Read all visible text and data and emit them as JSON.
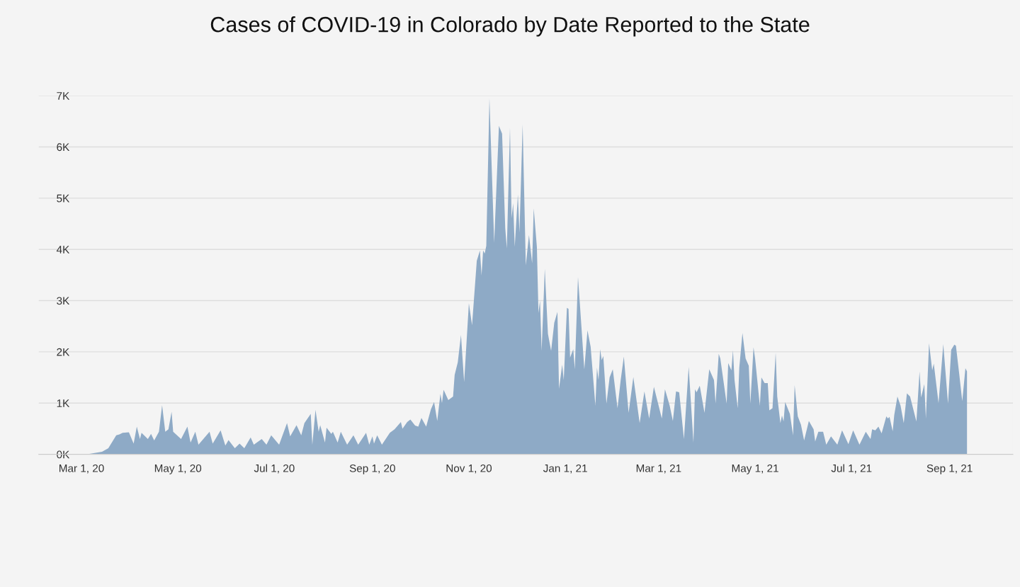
{
  "chart_data": {
    "type": "area",
    "title": "Cases of COVID-19 in Colorado by Date Reported to the State",
    "x": [
      "2020-03-04",
      "2020-03-14",
      "2020-03-18",
      "2020-03-23",
      "2020-03-25",
      "2020-03-27",
      "2020-03-31",
      "2020-04-03",
      "2020-04-05",
      "2020-04-07",
      "2020-04-08",
      "2020-04-12",
      "2020-04-14",
      "2020-04-16",
      "2020-04-19",
      "2020-04-21",
      "2020-04-23",
      "2020-04-25",
      "2020-04-27",
      "2020-04-28",
      "2020-05-03",
      "2020-05-07",
      "2020-05-09",
      "2020-05-12",
      "2020-05-14",
      "2020-05-21",
      "2020-05-23",
      "2020-05-28",
      "2020-05-31",
      "2020-06-02",
      "2020-06-06",
      "2020-06-09",
      "2020-06-12",
      "2020-06-16",
      "2020-06-18",
      "2020-06-23",
      "2020-06-26",
      "2020-06-29",
      "2020-07-04",
      "2020-07-09",
      "2020-07-11",
      "2020-07-15",
      "2020-07-18",
      "2020-07-20",
      "2020-07-24",
      "2020-07-25",
      "2020-07-27",
      "2020-07-29",
      "2020-07-30",
      "2020-08-02",
      "2020-08-03",
      "2020-08-06",
      "2020-08-07",
      "2020-08-10",
      "2020-08-12",
      "2020-08-16",
      "2020-08-20",
      "2020-08-23",
      "2020-08-28",
      "2020-08-30",
      "2020-09-01",
      "2020-09-02",
      "2020-09-04",
      "2020-09-07",
      "2020-09-12",
      "2020-09-15",
      "2020-09-19",
      "2020-09-20",
      "2020-09-23",
      "2020-09-25",
      "2020-09-28",
      "2020-09-30",
      "2020-10-02",
      "2020-10-05",
      "2020-10-08",
      "2020-10-10",
      "2020-10-12",
      "2020-10-14",
      "2020-10-15",
      "2020-10-16",
      "2020-10-19",
      "2020-10-22",
      "2020-10-23",
      "2020-10-25",
      "2020-10-27",
      "2020-10-29",
      "2020-11-01",
      "2020-11-03",
      "2020-11-06",
      "2020-11-08",
      "2020-11-09",
      "2020-11-10",
      "2020-11-11",
      "2020-11-12",
      "2020-11-14",
      "2020-11-17",
      "2020-11-20",
      "2020-11-22",
      "2020-11-24",
      "2020-11-25",
      "2020-11-27",
      "2020-11-28",
      "2020-11-29",
      "2020-11-30",
      "2020-12-02",
      "2020-12-03",
      "2020-12-05",
      "2020-12-07",
      "2020-12-09",
      "2020-12-11",
      "2020-12-12",
      "2020-12-14",
      "2020-12-15",
      "2020-12-16",
      "2020-12-17",
      "2020-12-19",
      "2020-12-21",
      "2020-12-23",
      "2020-12-25",
      "2020-12-27",
      "2020-12-28",
      "2020-12-30",
      "2020-12-31",
      "2021-01-02",
      "2021-01-03",
      "2021-01-04",
      "2021-01-06",
      "2021-01-07",
      "2021-01-09",
      "2021-01-10",
      "2021-01-13",
      "2021-01-15",
      "2021-01-17",
      "2021-01-20",
      "2021-01-21",
      "2021-01-22",
      "2021-01-23",
      "2021-01-24",
      "2021-01-25",
      "2021-01-27",
      "2021-01-29",
      "2021-01-31",
      "2021-02-03",
      "2021-02-05",
      "2021-02-07",
      "2021-02-10",
      "2021-02-13",
      "2021-02-17",
      "2021-02-20",
      "2021-02-23",
      "2021-02-26",
      "2021-03-01",
      "2021-03-03",
      "2021-03-05",
      "2021-03-08",
      "2021-03-10",
      "2021-03-12",
      "2021-03-14",
      "2021-03-17",
      "2021-03-20",
      "2021-03-23",
      "2021-03-24",
      "2021-03-25",
      "2021-03-27",
      "2021-03-30",
      "2021-04-02",
      "2021-04-05",
      "2021-04-06",
      "2021-04-08",
      "2021-04-09",
      "2021-04-13",
      "2021-04-14",
      "2021-04-16",
      "2021-04-17",
      "2021-04-18",
      "2021-04-20",
      "2021-04-21",
      "2021-04-23",
      "2021-04-25",
      "2021-04-27",
      "2021-04-28",
      "2021-04-30",
      "2021-05-01",
      "2021-05-04",
      "2021-05-05",
      "2021-05-07",
      "2021-05-09",
      "2021-05-10",
      "2021-05-12",
      "2021-05-14",
      "2021-05-15",
      "2021-05-17",
      "2021-05-18",
      "2021-05-19",
      "2021-05-20",
      "2021-05-23",
      "2021-05-25",
      "2021-05-26",
      "2021-05-28",
      "2021-05-30",
      "2021-06-01",
      "2021-06-04",
      "2021-06-07",
      "2021-06-08",
      "2021-06-10",
      "2021-06-13",
      "2021-06-15",
      "2021-06-18",
      "2021-06-22",
      "2021-06-25",
      "2021-06-29",
      "2021-07-02",
      "2021-07-06",
      "2021-07-10",
      "2021-07-13",
      "2021-07-14",
      "2021-07-16",
      "2021-07-18",
      "2021-07-20",
      "2021-07-23",
      "2021-07-24",
      "2021-07-25",
      "2021-07-27",
      "2021-07-28",
      "2021-07-30",
      "2021-08-01",
      "2021-08-03",
      "2021-08-05",
      "2021-08-07",
      "2021-08-11",
      "2021-08-13",
      "2021-08-14",
      "2021-08-16",
      "2021-08-17",
      "2021-08-19",
      "2021-08-21",
      "2021-08-22",
      "2021-08-25",
      "2021-08-28",
      "2021-08-31",
      "2021-09-02",
      "2021-09-04",
      "2021-09-05",
      "2021-09-07",
      "2021-09-09",
      "2021-09-11",
      "2021-09-12"
    ],
    "values": [
      0,
      50,
      120,
      370,
      390,
      420,
      430,
      210,
      540,
      300,
      420,
      300,
      400,
      270,
      440,
      960,
      440,
      490,
      830,
      440,
      300,
      540,
      230,
      440,
      190,
      440,
      210,
      470,
      170,
      280,
      120,
      210,
      120,
      330,
      190,
      300,
      190,
      370,
      190,
      610,
      350,
      570,
      370,
      610,
      790,
      190,
      870,
      440,
      570,
      230,
      520,
      400,
      440,
      230,
      440,
      190,
      370,
      190,
      420,
      190,
      350,
      210,
      370,
      190,
      420,
      490,
      630,
      500,
      630,
      680,
      560,
      540,
      710,
      540,
      880,
      1020,
      650,
      1180,
      1000,
      1260,
      1060,
      1130,
      1550,
      1800,
      2330,
      1410,
      2950,
      2520,
      3780,
      3980,
      3490,
      3980,
      3920,
      4070,
      6950,
      4130,
      6410,
      6260,
      4410,
      4020,
      6380,
      4610,
      4900,
      4050,
      5070,
      4330,
      6440,
      3690,
      4280,
      3730,
      4800,
      4050,
      2760,
      3000,
      2020,
      3620,
      2350,
      2020,
      2570,
      2780,
      1280,
      1750,
      1450,
      2860,
      2840,
      1890,
      2050,
      1660,
      3460,
      3020,
      1660,
      2420,
      2100,
      950,
      1690,
      1450,
      2050,
      1840,
      1920,
      990,
      1500,
      1660,
      900,
      1450,
      1910,
      810,
      1510,
      610,
      1230,
      700,
      1320,
      950,
      700,
      1270,
      950,
      650,
      1230,
      1210,
      300,
      1710,
      230,
      1270,
      1210,
      1340,
      810,
      1660,
      1450,
      990,
      1960,
      1870,
      990,
      1780,
      1640,
      2030,
      1450,
      900,
      1690,
      2370,
      1870,
      1730,
      990,
      2090,
      1870,
      950,
      1500,
      1390,
      1390,
      860,
      900,
      1980,
      1130,
      610,
      760,
      640,
      1020,
      790,
      370,
      1350,
      740,
      580,
      270,
      650,
      490,
      250,
      440,
      440,
      190,
      350,
      190,
      470,
      200,
      470,
      190,
      440,
      300,
      490,
      470,
      540,
      410,
      740,
      700,
      730,
      450,
      770,
      1130,
      950,
      610,
      1190,
      1130,
      640,
      1620,
      1110,
      1370,
      700,
      2170,
      1640,
      1770,
      1000,
      2150,
      990,
      2040,
      2140,
      2120,
      1590,
      1040,
      1680,
      1620
    ],
    "color": "#8eaac6",
    "xlim": [
      "2020-02-03",
      "2021-10-11"
    ],
    "xticks": [
      {
        "value": "2020-03-01",
        "label": "Mar 1, 20"
      },
      {
        "value": "2020-05-01",
        "label": "May 1, 20"
      },
      {
        "value": "2020-07-01",
        "label": "Jul 1, 20"
      },
      {
        "value": "2020-09-01",
        "label": "Sep 1, 20"
      },
      {
        "value": "2020-11-01",
        "label": "Nov 1, 20"
      },
      {
        "value": "2021-01-01",
        "label": "Jan 1, 21"
      },
      {
        "value": "2021-03-01",
        "label": "Mar 1, 21"
      },
      {
        "value": "2021-05-01",
        "label": "May 1, 21"
      },
      {
        "value": "2021-07-01",
        "label": "Jul 1, 21"
      },
      {
        "value": "2021-09-01",
        "label": "Sep 1, 21"
      }
    ],
    "ylim": [
      0,
      7000
    ],
    "yticks": [
      {
        "value": 0,
        "label": "0K"
      },
      {
        "value": 1000,
        "label": "1K"
      },
      {
        "value": 2000,
        "label": "2K"
      },
      {
        "value": 3000,
        "label": "3K"
      },
      {
        "value": 4000,
        "label": "4K"
      },
      {
        "value": 5000,
        "label": "5K"
      },
      {
        "value": 6000,
        "label": "6K"
      },
      {
        "value": 7000,
        "label": "7K"
      }
    ],
    "grid": "y"
  }
}
